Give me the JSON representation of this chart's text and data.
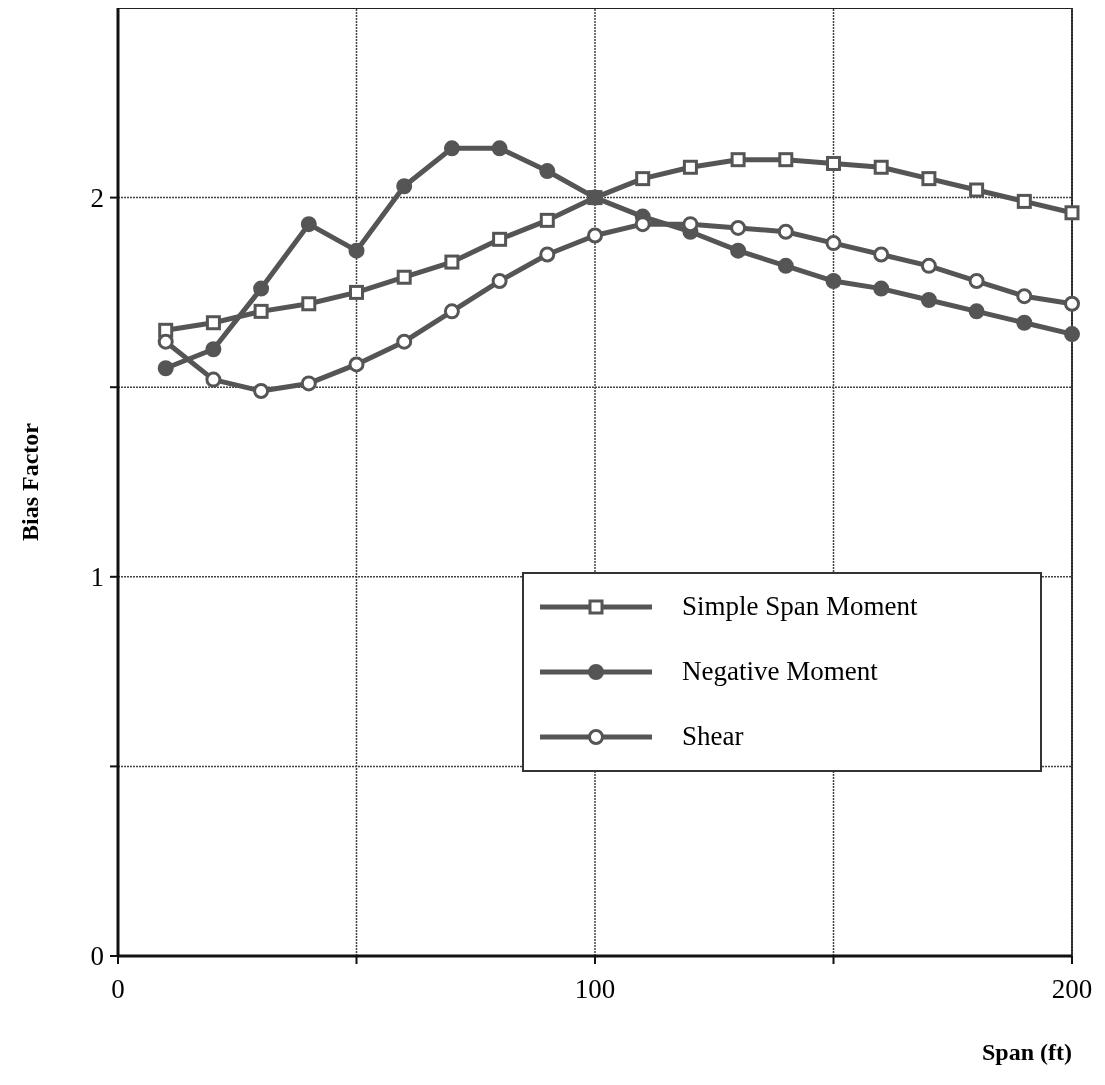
{
  "chart_data": {
    "type": "line",
    "xlabel": "Span (ft)",
    "ylabel": "Bias Factor",
    "x": [
      10,
      20,
      30,
      40,
      50,
      60,
      70,
      80,
      90,
      100,
      110,
      120,
      130,
      140,
      150,
      160,
      170,
      180,
      190,
      200
    ],
    "xlim": [
      0,
      200
    ],
    "xticks": [
      0,
      {
        "value": 50,
        "label": null
      },
      100,
      {
        "value": 150,
        "label": null
      },
      200
    ],
    "ylim": [
      0,
      2.5
    ],
    "yticks": [
      0,
      {
        "value": 0.5,
        "label": null
      },
      1,
      {
        "value": 1.5,
        "label": null
      },
      2
    ],
    "grid": true,
    "legend": "bottom right",
    "line_style": "solid",
    "series": [
      {
        "name": "Simple Span Moment",
        "color": "#555555",
        "marker": "square",
        "values": [
          1.65,
          1.67,
          1.7,
          1.72,
          1.75,
          1.79,
          1.83,
          1.89,
          1.94,
          2.0,
          2.05,
          2.08,
          2.1,
          2.1,
          2.09,
          2.08,
          2.05,
          2.02,
          1.99,
          1.96
        ]
      },
      {
        "name": "Negative Moment",
        "color": "#555555",
        "marker": "circle",
        "values": [
          1.55,
          1.6,
          1.76,
          1.93,
          1.86,
          2.03,
          2.13,
          2.13,
          2.07,
          2.0,
          1.95,
          1.91,
          1.86,
          1.82,
          1.78,
          1.76,
          1.73,
          1.7,
          1.67,
          1.64
        ]
      },
      {
        "name": "Shear",
        "color": "#555555",
        "marker": "circle",
        "values": [
          1.62,
          1.52,
          1.49,
          1.51,
          1.56,
          1.62,
          1.7,
          1.78,
          1.85,
          1.9,
          1.93,
          1.93,
          1.92,
          1.91,
          1.88,
          1.85,
          1.82,
          1.78,
          1.74,
          1.72
        ]
      }
    ]
  }
}
